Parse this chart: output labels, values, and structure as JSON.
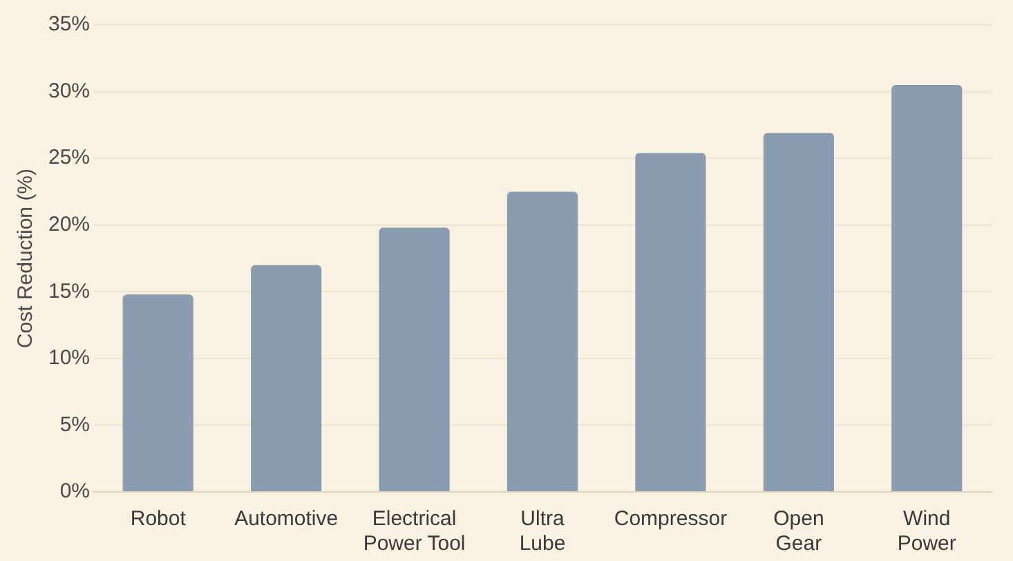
{
  "chart_data": {
    "type": "bar",
    "ylabel": "Cost Reduction (%)",
    "categories": [
      "Robot",
      "Automotive",
      "Electrical Power Tool",
      "Ultra Lube",
      "Compressor",
      "Open Gear",
      "Wind Power"
    ],
    "values": [
      14.8,
      17.0,
      19.8,
      22.5,
      25.4,
      26.9,
      30.5
    ],
    "color": "#8a9db0",
    "ylim": [
      0,
      35
    ],
    "yticks": [
      {
        "value": 0,
        "label": "0%"
      },
      {
        "value": 5,
        "label": "5%"
      },
      {
        "value": 10,
        "label": "10%"
      },
      {
        "value": 15,
        "label": "15%"
      },
      {
        "value": 20,
        "label": "20%"
      },
      {
        "value": 25,
        "label": "25%"
      },
      {
        "value": 30,
        "label": "30%"
      },
      {
        "value": 35,
        "label": "35%"
      }
    ],
    "grid": "y",
    "legend": false
  }
}
